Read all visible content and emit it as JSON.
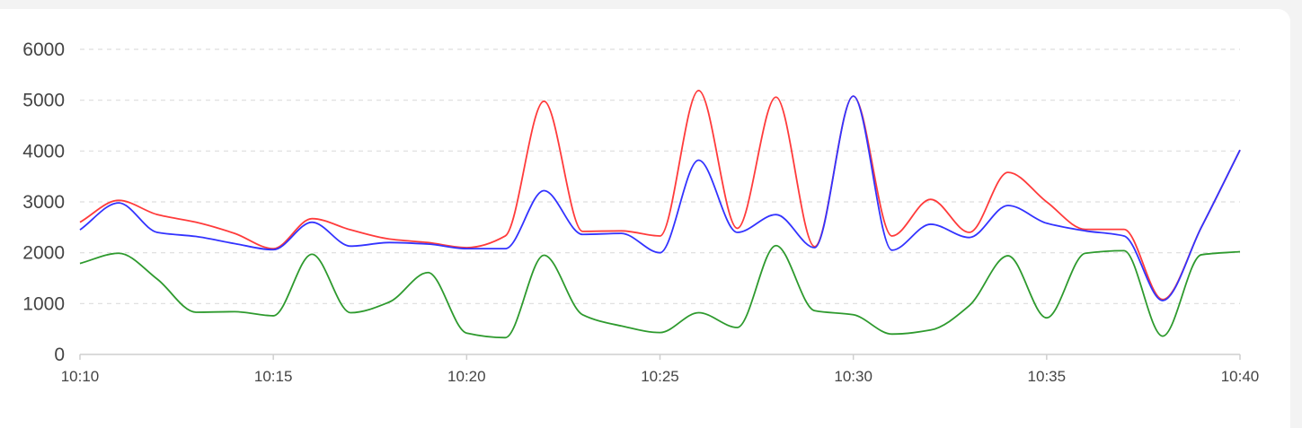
{
  "chart_data": {
    "type": "line",
    "x": [
      "10:10",
      "10:11",
      "10:12",
      "10:13",
      "10:14",
      "10:15",
      "10:16",
      "10:17",
      "10:18",
      "10:19",
      "10:20",
      "10:21",
      "10:22",
      "10:23",
      "10:24",
      "10:25",
      "10:26",
      "10:27",
      "10:28",
      "10:29",
      "10:30",
      "10:31",
      "10:32",
      "10:33",
      "10:34",
      "10:35",
      "10:36",
      "10:37",
      "10:38",
      "10:39",
      "10:40"
    ],
    "x_ticks": [
      "10:10",
      "10:15",
      "10:20",
      "10:25",
      "10:30",
      "10:35",
      "10:40"
    ],
    "y_ticks": [
      0,
      1000,
      2000,
      3000,
      4000,
      5000,
      6000
    ],
    "ylim": [
      0,
      6000
    ],
    "grid": "horizontal dashed",
    "series": [
      {
        "color": "#ff3b3b",
        "values": [
          2600,
          3030,
          2750,
          2600,
          2380,
          2080,
          2670,
          2450,
          2270,
          2200,
          2100,
          2330,
          4980,
          2420,
          2430,
          2330,
          5190,
          2480,
          5060,
          2120,
          5080,
          2330,
          3050,
          2400,
          3580,
          3000,
          2460,
          2460,
          1080,
          2500,
          4020
        ]
      },
      {
        "color": "#3333ff",
        "values": [
          2450,
          2980,
          2400,
          2320,
          2180,
          2060,
          2600,
          2130,
          2200,
          2170,
          2080,
          2080,
          3220,
          2360,
          2380,
          2000,
          3820,
          2400,
          2750,
          2100,
          5080,
          2050,
          2560,
          2300,
          2930,
          2580,
          2430,
          2330,
          1060,
          2500,
          4020
        ]
      },
      {
        "color": "#2e9a2e",
        "values": [
          1790,
          1990,
          1480,
          830,
          840,
          760,
          1970,
          820,
          1030,
          1610,
          420,
          330,
          1950,
          780,
          560,
          430,
          820,
          530,
          2140,
          860,
          780,
          400,
          480,
          960,
          1940,
          720,
          1990,
          2040,
          360,
          1960,
          2020
        ]
      }
    ]
  }
}
